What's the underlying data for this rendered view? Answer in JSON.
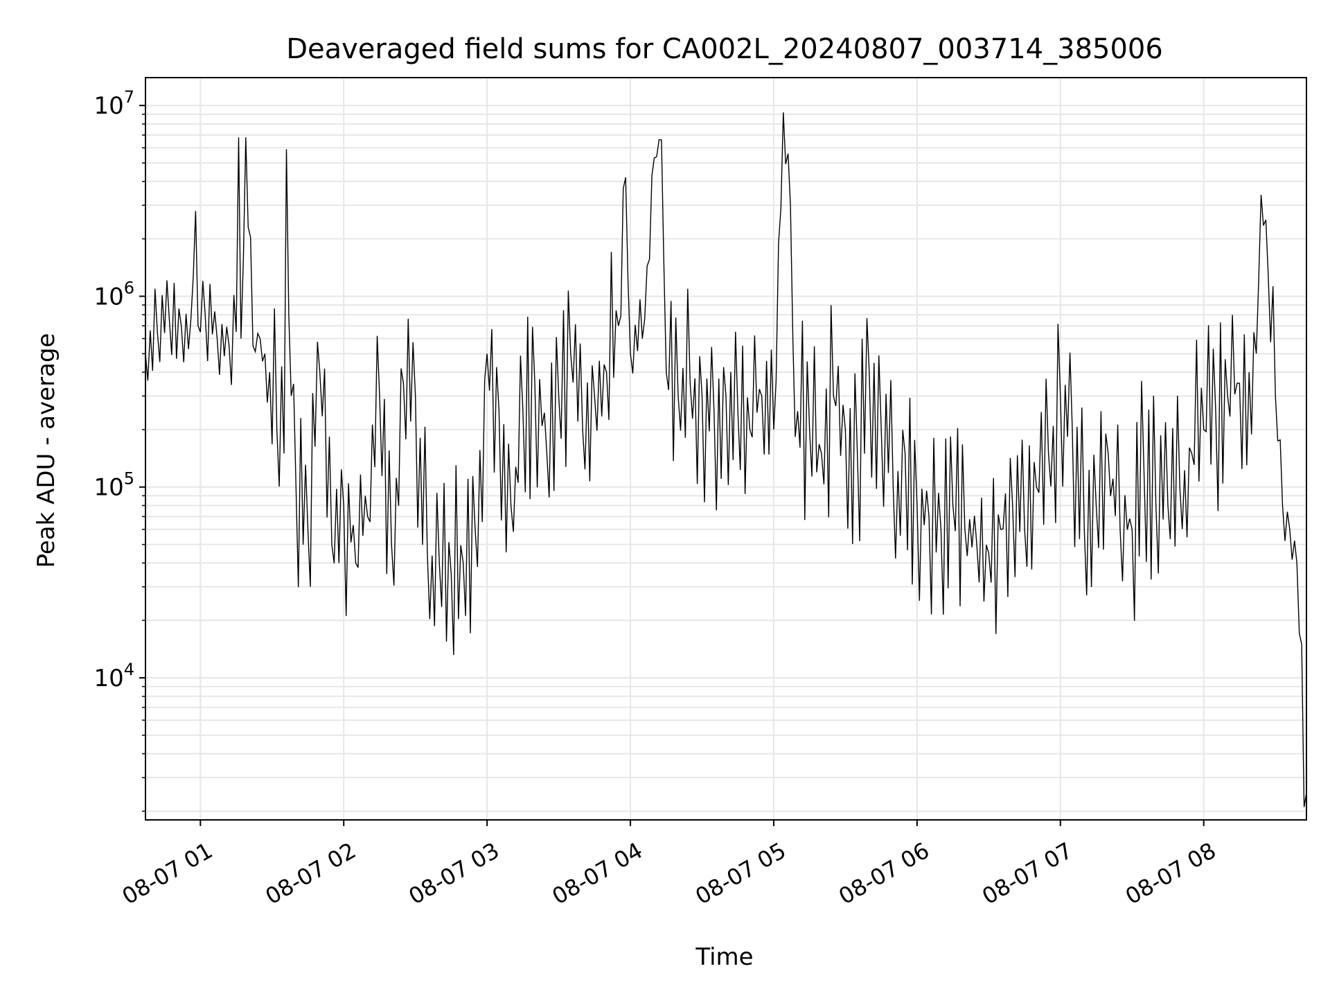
{
  "chart_data": {
    "type": "line",
    "title": "Deaveraged field sums for CA002L_20240807_003714_385006",
    "xlabel": "Time",
    "ylabel": "Peak ADU - average",
    "yscale": "log",
    "ylim": [
      1800,
      14000000
    ],
    "xlim": [
      "2024-08-07 00:37",
      "2024-08-07 08:43"
    ],
    "grid": true,
    "line_color": "#000000",
    "grid_color": "#e6e6e6",
    "x_ticks": [
      {
        "label": "08-07 01",
        "value": "2024-08-07 01:00"
      },
      {
        "label": "08-07 02",
        "value": "2024-08-07 02:00"
      },
      {
        "label": "08-07 03",
        "value": "2024-08-07 03:00"
      },
      {
        "label": "08-07 04",
        "value": "2024-08-07 04:00"
      },
      {
        "label": "08-07 05",
        "value": "2024-08-07 05:00"
      },
      {
        "label": "08-07 06",
        "value": "2024-08-07 06:00"
      },
      {
        "label": "08-07 07",
        "value": "2024-08-07 07:00"
      },
      {
        "label": "08-07 08",
        "value": "2024-08-07 08:00"
      }
    ],
    "y_ticks": [
      {
        "base": "10",
        "exp": "4",
        "value": 10000
      },
      {
        "base": "10",
        "exp": "5",
        "value": 100000
      },
      {
        "base": "10",
        "exp": "6",
        "value": 1000000
      },
      {
        "base": "10",
        "exp": "7",
        "value": 10000000
      }
    ],
    "series": [
      {
        "x": [
          "2024-08-07 00:37",
          "2024-08-07 00:42",
          "2024-08-07 00:47",
          "2024-08-07 00:52",
          "2024-08-07 00:56",
          "2024-08-07 00:58",
          "2024-08-07 00:59",
          "2024-08-07 01:02",
          "2024-08-07 01:07",
          "2024-08-07 01:12",
          "2024-08-07 01:15",
          "2024-08-07 01:16",
          "2024-08-07 01:17",
          "2024-08-07 01:19",
          "2024-08-07 01:22",
          "2024-08-07 01:25",
          "2024-08-07 01:27",
          "2024-08-07 01:29",
          "2024-08-07 01:32",
          "2024-08-07 01:35",
          "2024-08-07 01:36",
          "2024-08-07 01:37",
          "2024-08-07 01:40",
          "2024-08-07 01:45",
          "2024-08-07 01:50",
          "2024-08-07 01:55",
          "2024-08-07 02:00",
          "2024-08-07 02:05",
          "2024-08-07 02:10",
          "2024-08-07 02:15",
          "2024-08-07 02:20",
          "2024-08-07 02:25",
          "2024-08-07 02:30",
          "2024-08-07 02:35",
          "2024-08-07 02:40",
          "2024-08-07 02:45",
          "2024-08-07 02:50",
          "2024-08-07 02:55",
          "2024-08-07 03:00",
          "2024-08-07 03:05",
          "2024-08-07 03:10",
          "2024-08-07 03:15",
          "2024-08-07 03:20",
          "2024-08-07 03:25",
          "2024-08-07 03:30",
          "2024-08-07 03:35",
          "2024-08-07 03:40",
          "2024-08-07 03:45",
          "2024-08-07 03:50",
          "2024-08-07 03:55",
          "2024-08-07 03:58",
          "2024-08-07 04:00",
          "2024-08-07 04:05",
          "2024-08-07 04:10",
          "2024-08-07 04:13",
          "2024-08-07 04:15",
          "2024-08-07 04:20",
          "2024-08-07 04:25",
          "2024-08-07 04:30",
          "2024-08-07 04:35",
          "2024-08-07 04:40",
          "2024-08-07 04:45",
          "2024-08-07 04:50",
          "2024-08-07 04:55",
          "2024-08-07 05:00",
          "2024-08-07 05:04",
          "2024-08-07 05:07",
          "2024-08-07 05:08",
          "2024-08-07 05:10",
          "2024-08-07 05:15",
          "2024-08-07 05:20",
          "2024-08-07 05:25",
          "2024-08-07 05:30",
          "2024-08-07 05:35",
          "2024-08-07 05:40",
          "2024-08-07 05:45",
          "2024-08-07 05:50",
          "2024-08-07 05:55",
          "2024-08-07 06:00",
          "2024-08-07 06:05",
          "2024-08-07 06:10",
          "2024-08-07 06:15",
          "2024-08-07 06:20",
          "2024-08-07 06:25",
          "2024-08-07 06:30",
          "2024-08-07 06:35",
          "2024-08-07 06:40",
          "2024-08-07 06:45",
          "2024-08-07 06:50",
          "2024-08-07 06:55",
          "2024-08-07 07:00",
          "2024-08-07 07:05",
          "2024-08-07 07:10",
          "2024-08-07 07:15",
          "2024-08-07 07:20",
          "2024-08-07 07:25",
          "2024-08-07 07:30",
          "2024-08-07 07:35",
          "2024-08-07 07:40",
          "2024-08-07 07:45",
          "2024-08-07 07:50",
          "2024-08-07 07:55",
          "2024-08-07 08:00",
          "2024-08-07 08:05",
          "2024-08-07 08:10",
          "2024-08-07 08:15",
          "2024-08-07 08:19",
          "2024-08-07 08:22",
          "2024-08-07 08:24",
          "2024-08-07 08:27",
          "2024-08-07 08:30",
          "2024-08-07 08:33",
          "2024-08-07 08:36",
          "2024-08-07 08:39",
          "2024-08-07 08:41",
          "2024-08-07 08:43"
        ],
        "y": [
          500000,
          650000,
          750000,
          700000,
          750000,
          2800000,
          700000,
          800000,
          600000,
          550000,
          650000,
          6800000,
          600000,
          6800000,
          550000,
          600000,
          500000,
          400000,
          200000,
          150000,
          5900000,
          800000,
          100000,
          60000,
          400000,
          50000,
          80000,
          40000,
          70000,
          300000,
          50000,
          350000,
          300000,
          45000,
          40000,
          35000,
          40000,
          60000,
          500000,
          250000,
          80000,
          250000,
          350000,
          150000,
          300000,
          500000,
          200000,
          300000,
          400000,
          700000,
          4200000,
          500000,
          600000,
          5300000,
          6600000,
          400000,
          300000,
          350000,
          300000,
          250000,
          300000,
          250000,
          200000,
          300000,
          200000,
          9200000,
          3000000,
          600000,
          250000,
          200000,
          150000,
          300000,
          200000,
          150000,
          400000,
          200000,
          100000,
          150000,
          80000,
          70000,
          60000,
          80000,
          60000,
          50000,
          45000,
          60000,
          80000,
          60000,
          100000,
          150000,
          300000,
          200000,
          60000,
          80000,
          150000,
          60000,
          60000,
          120000,
          80000,
          80000,
          100000,
          150000,
          200000,
          250000,
          300000,
          350000,
          400000,
          500000,
          3400000,
          1300000,
          300000,
          80000,
          60000,
          40000,
          15000,
          2500
        ]
      }
    ]
  }
}
